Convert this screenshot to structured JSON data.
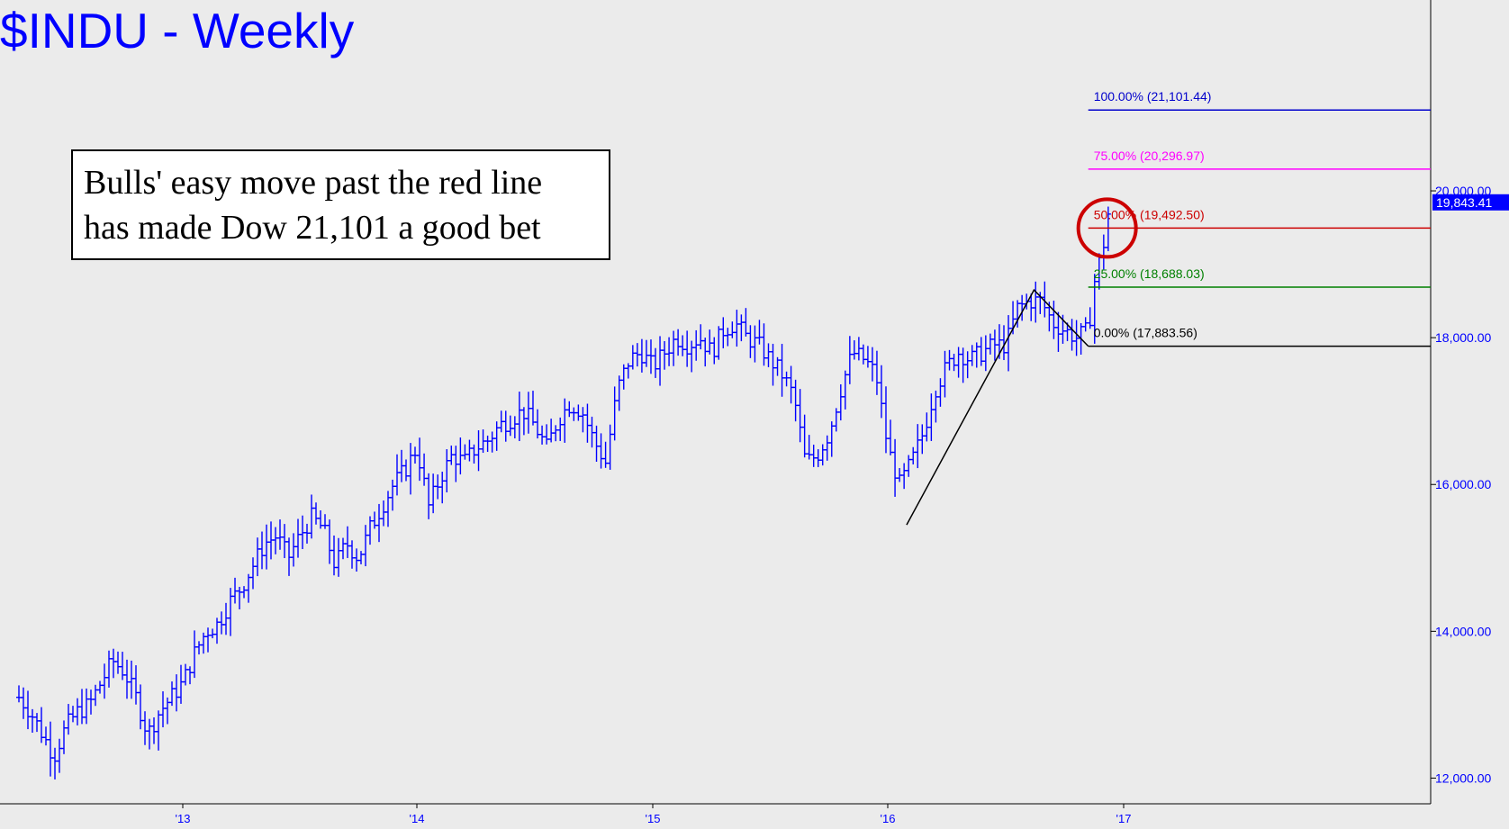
{
  "title": "$INDU - Weekly",
  "annotation": {
    "line1": "Bulls' easy move past the red line",
    "line2": "has made Dow 21,101 a good bet"
  },
  "colors": {
    "background": "#ebebeb",
    "price": "#0000ff",
    "title": "#0000ff",
    "fib_100": "#0000cc",
    "fib_75": "#ff00ff",
    "fib_50": "#cc0000",
    "fib_25": "#008000",
    "fib_0": "#000000",
    "circle": "#cc0000"
  },
  "chart_data": {
    "type": "bar",
    "series_kind": "weekly price bars",
    "x_ticks": [
      "'13",
      "'14",
      "'15",
      "'16",
      "'17"
    ],
    "y_ticks": [
      "12,000.00",
      "14,000.00",
      "16,000.00",
      "18,000.00",
      "20,000.00"
    ],
    "y_range": [
      11650,
      22600
    ],
    "last_price": "19,843.41",
    "fib_levels": [
      {
        "label": "100.00% (21,101.44)",
        "value": 21101.44,
        "color": "#0000cc"
      },
      {
        "label": "75.00% (20,296.97)",
        "value": 20296.97,
        "color": "#ff00ff"
      },
      {
        "label": "50.00% (19,492.50)",
        "value": 19492.5,
        "color": "#cc0000"
      },
      {
        "label": "25.00% (18,688.03)",
        "value": 18688.03,
        "color": "#008000"
      },
      {
        "label": "0.00% (17,883.56)",
        "value": 17883.56,
        "color": "#000000"
      }
    ],
    "swing_line": [
      {
        "x": 2016.08,
        "y": 15450
      },
      {
        "x": 2016.62,
        "y": 18650
      },
      {
        "x": 2016.85,
        "y": 17883.56
      }
    ],
    "circle_center": {
      "x": 2016.93,
      "y": 19492.5
    },
    "closes": [
      [
        2012.3,
        13100
      ],
      [
        2012.35,
        12900
      ],
      [
        2012.4,
        12600
      ],
      [
        2012.45,
        12300
      ],
      [
        2012.5,
        12700
      ],
      [
        2012.55,
        12900
      ],
      [
        2012.6,
        13000
      ],
      [
        2012.65,
        13300
      ],
      [
        2012.7,
        13600
      ],
      [
        2012.75,
        13450
      ],
      [
        2012.8,
        13100
      ],
      [
        2012.85,
        12600
      ],
      [
        2012.9,
        12900
      ],
      [
        2012.95,
        13100
      ],
      [
        2013.0,
        13300
      ],
      [
        2013.05,
        13700
      ],
      [
        2013.1,
        14000
      ],
      [
        2013.15,
        14100
      ],
      [
        2013.2,
        14400
      ],
      [
        2013.25,
        14600
      ],
      [
        2013.3,
        14900
      ],
      [
        2013.35,
        15200
      ],
      [
        2013.4,
        15300
      ],
      [
        2013.45,
        15000
      ],
      [
        2013.5,
        15300
      ],
      [
        2013.55,
        15550
      ],
      [
        2013.6,
        15400
      ],
      [
        2013.65,
        14900
      ],
      [
        2013.7,
        15200
      ],
      [
        2013.75,
        15000
      ],
      [
        2013.8,
        15400
      ],
      [
        2013.85,
        15700
      ],
      [
        2013.9,
        16000
      ],
      [
        2013.95,
        16200
      ],
      [
        2014.0,
        16500
      ],
      [
        2014.05,
        15700
      ],
      [
        2014.1,
        16100
      ],
      [
        2014.15,
        16400
      ],
      [
        2014.2,
        16300
      ],
      [
        2014.25,
        16500
      ],
      [
        2014.3,
        16600
      ],
      [
        2014.35,
        16800
      ],
      [
        2014.4,
        16900
      ],
      [
        2014.45,
        17000
      ],
      [
        2014.5,
        16800
      ],
      [
        2014.55,
        16500
      ],
      [
        2014.6,
        16900
      ],
      [
        2014.65,
        17100
      ],
      [
        2014.7,
        17000
      ],
      [
        2014.75,
        16600
      ],
      [
        2014.8,
        16300
      ],
      [
        2014.85,
        17300
      ],
      [
        2014.9,
        17700
      ],
      [
        2014.95,
        17800
      ],
      [
        2015.0,
        17600
      ],
      [
        2015.05,
        17800
      ],
      [
        2015.1,
        18000
      ],
      [
        2015.15,
        17900
      ],
      [
        2015.2,
        18000
      ],
      [
        2015.25,
        17800
      ],
      [
        2015.3,
        18100
      ],
      [
        2015.35,
        18200
      ],
      [
        2015.4,
        18000
      ],
      [
        2015.45,
        17900
      ],
      [
        2015.5,
        17700
      ],
      [
        2015.55,
        17500
      ],
      [
        2015.6,
        17200
      ],
      [
        2015.65,
        16300
      ],
      [
        2015.7,
        16400
      ],
      [
        2015.75,
        16700
      ],
      [
        2015.8,
        17300
      ],
      [
        2015.85,
        17800
      ],
      [
        2015.9,
        17700
      ],
      [
        2015.95,
        17500
      ],
      [
        2016.0,
        16500
      ],
      [
        2016.05,
        16000
      ],
      [
        2016.1,
        16300
      ],
      [
        2016.15,
        16700
      ],
      [
        2016.2,
        17300
      ],
      [
        2016.25,
        17600
      ],
      [
        2016.3,
        17800
      ],
      [
        2016.35,
        17700
      ],
      [
        2016.4,
        17800
      ],
      [
        2016.45,
        17900
      ],
      [
        2016.5,
        17900
      ],
      [
        2016.55,
        18400
      ],
      [
        2016.6,
        18500
      ],
      [
        2016.65,
        18500
      ],
      [
        2016.7,
        18200
      ],
      [
        2016.75,
        18100
      ],
      [
        2016.8,
        18000
      ],
      [
        2016.85,
        18100
      ],
      [
        2016.88,
        18850
      ],
      [
        2016.91,
        19170
      ],
      [
        2016.94,
        19800
      ],
      [
        2016.95,
        19843.41
      ]
    ]
  }
}
